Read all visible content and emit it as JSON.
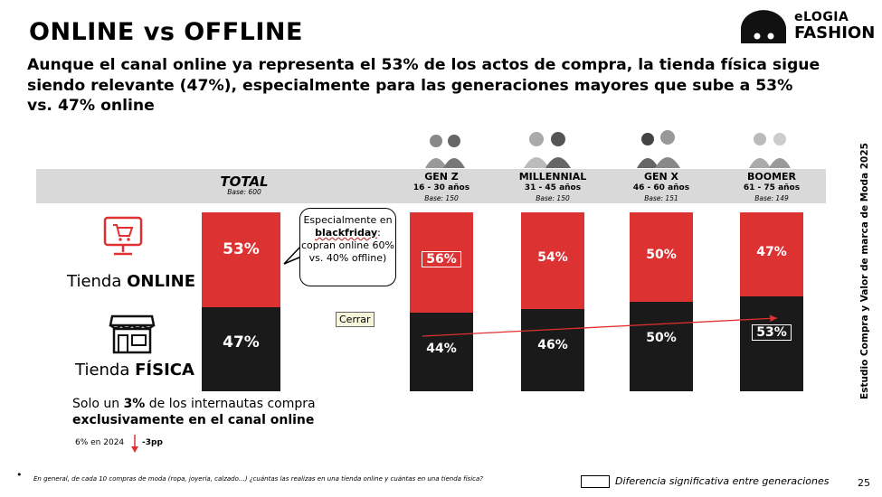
{
  "title": "ONLINE vs OFFLINE",
  "subtitle": "Aunque el canal online ya representa el 53% de los actos de compra, la tienda física sigue siendo relevante (47%), especialmente para las generaciones mayores que sube a 53% vs. 47% online",
  "logo": {
    "line1": "eLOGIA",
    "line2": "FASHION"
  },
  "colors": {
    "online": "#dc3232",
    "fisica": "#1a1a1a",
    "band": "#d9d9d9",
    "accent": "#e03030"
  },
  "total_header": {
    "name": "TOTAL",
    "base": "Base: 600"
  },
  "channels": {
    "online": {
      "prefix": "Tienda ",
      "bold": "ONLINE",
      "icon": "shopping-cart-monitor-icon"
    },
    "fisica": {
      "prefix": "Tienda ",
      "bold": "FÍSICA",
      "icon": "storefront-icon"
    }
  },
  "callout": {
    "before": "Especialmente en ",
    "bold": "blackfriday",
    "after": ": copran online 60% vs. 40% offline)"
  },
  "close_button": "Cerrar",
  "note": {
    "line1_a": "Solo un ",
    "line1_b": "3%",
    "line1_c": " de los internautas compra",
    "line2": "exclusivamente en el canal online"
  },
  "change": {
    "label": "6% en 2024",
    "delta": "-3pp"
  },
  "side_text": "Estudio Compra y Valor de marca de Moda 2025",
  "legend_text": "Diferencia significativa entre generaciones",
  "footer": "En general, de cada 10 compras de moda (ropa, joyería, calzado…) ¿cuántas las realizas en una tienda online y cuántas en una tienda física?",
  "page_number": "25",
  "chart_data": {
    "type": "bar",
    "stacked": true,
    "categories": [
      "TOTAL",
      "GEN Z",
      "MILLENNIAL",
      "GEN X",
      "BOOMER"
    ],
    "age_ranges": [
      "",
      "16 - 30 años",
      "31 - 45 años",
      "46 - 60 años",
      "61 - 75 años"
    ],
    "bases": [
      "Base: 600",
      "Base: 150",
      "Base: 150",
      "Base: 151",
      "Base: 149"
    ],
    "series": [
      {
        "name": "Tienda ONLINE",
        "values": [
          53,
          56,
          54,
          50,
          47
        ],
        "labels": [
          "53%",
          "56%",
          "54%",
          "50%",
          "47%"
        ]
      },
      {
        "name": "Tienda FÍSICA",
        "values": [
          47,
          44,
          46,
          50,
          53
        ],
        "labels": [
          "47%",
          "44%",
          "46%",
          "50%",
          "53%"
        ]
      }
    ],
    "significant": [
      {
        "category": "GEN Z",
        "series": "Tienda ONLINE"
      },
      {
        "category": "BOOMER",
        "series": "Tienda FÍSICA"
      }
    ],
    "ylim": [
      0,
      100
    ]
  }
}
